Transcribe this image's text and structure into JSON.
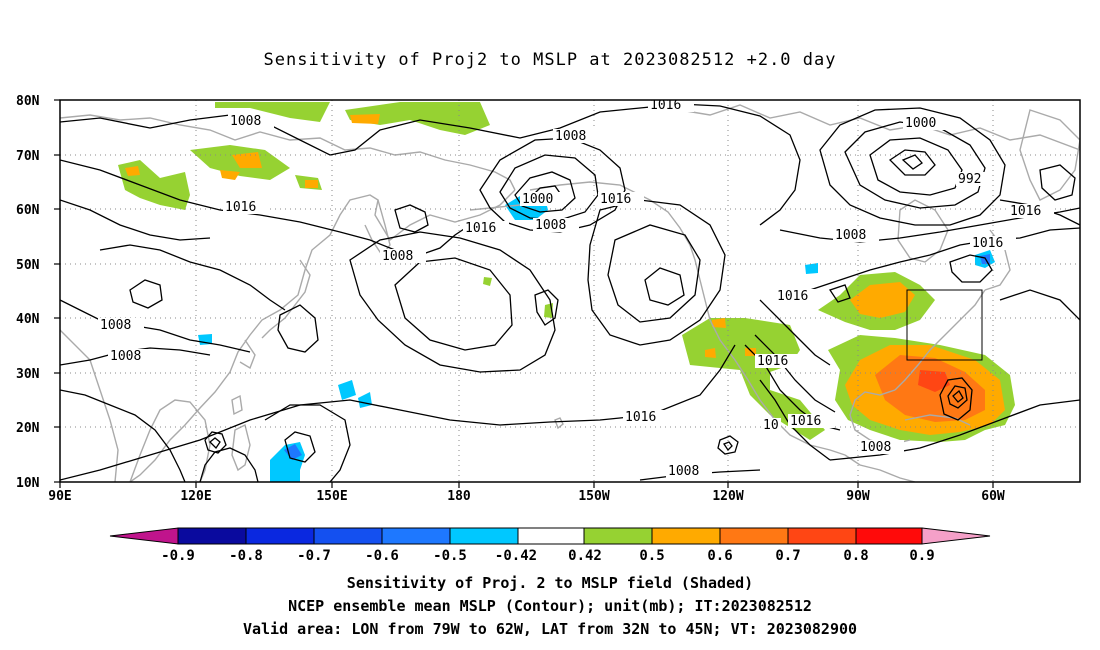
{
  "title": "Sensitivity of Proj2 to MSLP at 2023082512 +2.0 day",
  "lat_labels": [
    "80N",
    "70N",
    "60N",
    "50N",
    "40N",
    "30N",
    "20N",
    "10N"
  ],
  "lon_labels": [
    "90E",
    "120E",
    "150E",
    "180",
    "150W",
    "120W",
    "90W",
    "60W"
  ],
  "contour_labels": {
    "a": "1008",
    "b": "1016",
    "c": "1008",
    "d": "1000",
    "e": "1008",
    "f": "1016",
    "g": "1016",
    "h": "1016",
    "i": "1000",
    "j": "992",
    "k": "1016",
    "l": "1008",
    "m": "1016",
    "n": "1016",
    "o": "1008",
    "p": "1008",
    "q": "1008",
    "r": "1016",
    "s": "1016",
    "t": "1016",
    "u": "1008",
    "v": "1008",
    "w": "10"
  },
  "colorbar": {
    "labels": [
      "-0.9",
      "-0.8",
      "-0.7",
      "-0.6",
      "-0.5",
      "-0.42",
      "0.42",
      "0.5",
      "0.6",
      "0.7",
      "0.8",
      "0.9"
    ],
    "left_triangle_color": "#c0148c",
    "right_triangle_color": "#f5a0c8",
    "colors": [
      "#0a0a9e",
      "#0a28e0",
      "#1450f0",
      "#1e78ff",
      "#00c8ff",
      "#ffffff",
      "#96d232",
      "#ffaa00",
      "#ff7814",
      "#ff4614",
      "#ff0a0a"
    ]
  },
  "shading_colors": {
    "green": "#96d232",
    "orange": "#ffaa00",
    "dorange": "#ff7814",
    "red": "#ff4614",
    "cyan": "#00c8ff",
    "blue": "#1e78ff"
  },
  "captions": [
    "Sensitivity of Proj. 2 to MSLP field (Shaded)",
    "NCEP ensemble mean MSLP (Contour); unit(mb); IT:2023082512",
    "Valid area: LON from 79W to 62W, LAT from 32N to 45N; VT: 2023082900"
  ]
}
